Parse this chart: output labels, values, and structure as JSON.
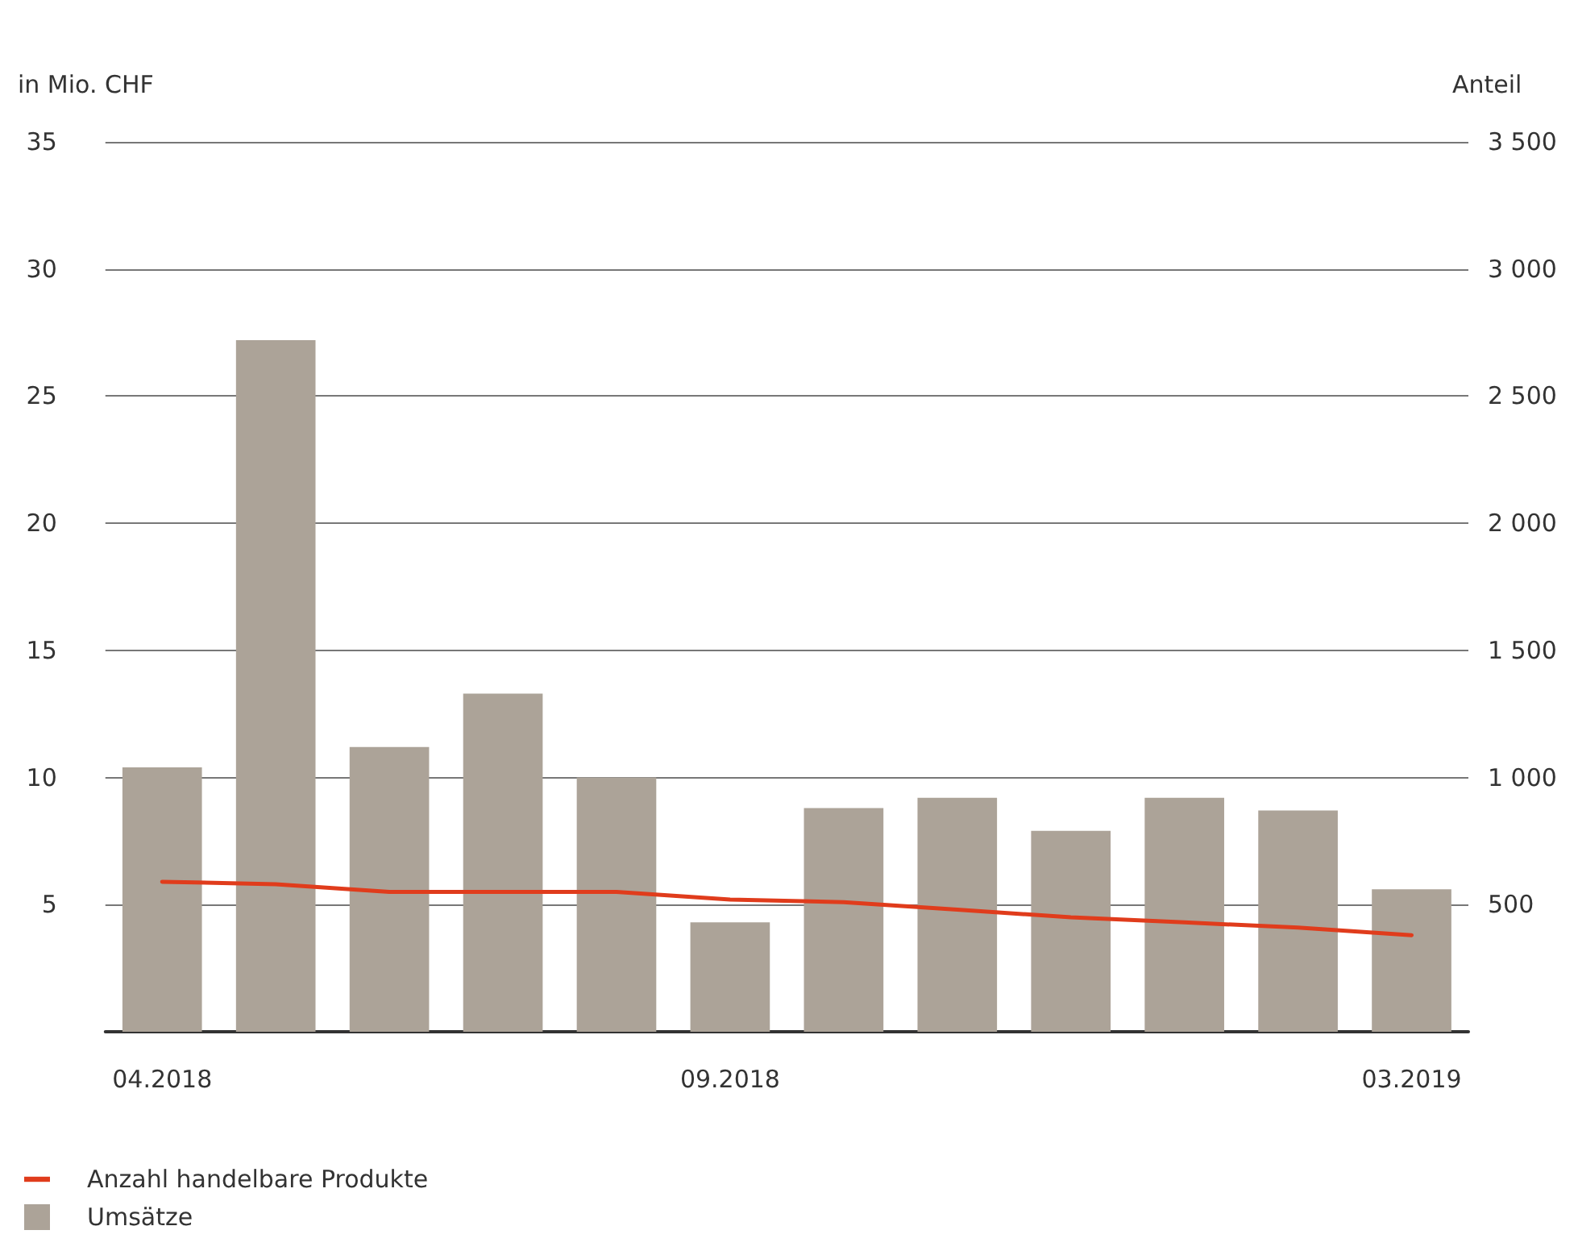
{
  "chart_data": {
    "type": "bar",
    "ylabel": "in Mio. CHF",
    "y2label": "Anteil",
    "categories": [
      "04.2018",
      null,
      null,
      null,
      null,
      "09.2018",
      null,
      null,
      null,
      null,
      null,
      "03.2019"
    ],
    "series": [
      {
        "name": "Anzahl handelbare Produkte",
        "type": "line",
        "axis": "y2",
        "color": "#e03c1c",
        "values": [
          590,
          580,
          550,
          550,
          550,
          520,
          510,
          480,
          450,
          430,
          410,
          380
        ]
      },
      {
        "name": "Umsätze",
        "color": "#aca398",
        "values": [
          10.4,
          27.2,
          11.2,
          13.3,
          10.0,
          4.3,
          8.8,
          9.2,
          7.9,
          9.2,
          8.7,
          5.6
        ]
      }
    ],
    "ylim": [
      0,
      35
    ],
    "yticks": [
      5,
      10,
      15,
      20,
      25,
      30,
      35
    ],
    "y2lim": [
      0,
      3500
    ],
    "y2ticks": [
      500,
      1000,
      1500,
      2000,
      2500,
      3000,
      3500
    ],
    "grid": "y",
    "legend": "bottom left",
    "marker": "none",
    "line_style": "solid"
  }
}
